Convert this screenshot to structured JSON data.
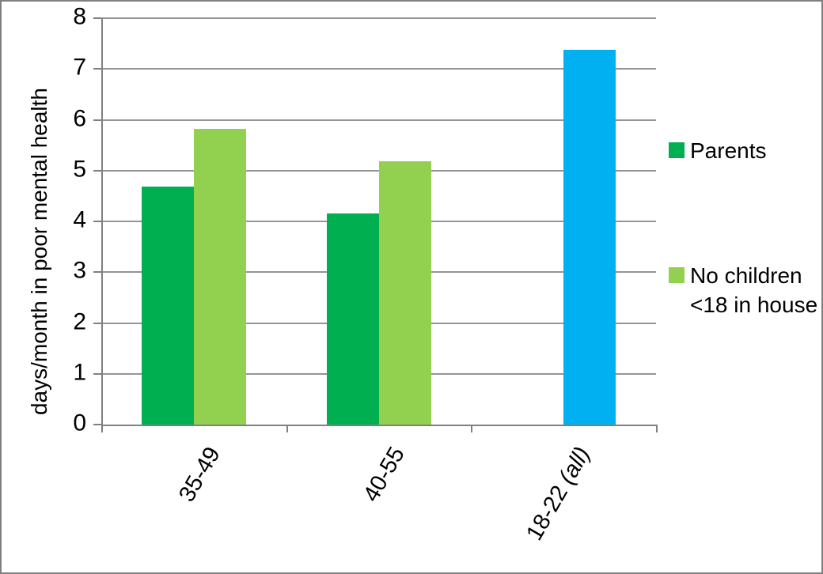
{
  "chart_data": {
    "type": "bar",
    "title": "",
    "xlabel": "",
    "ylabel": "days/month in poor mental health",
    "ylim": [
      0,
      8
    ],
    "y_ticks": [
      0,
      1,
      2,
      3,
      4,
      5,
      6,
      7,
      8
    ],
    "grid": true,
    "legend_position": "right",
    "categories": [
      "35-49",
      "40-55",
      "18-22 (all)"
    ],
    "category_labels": [
      {
        "text": "35-49",
        "italic_suffix": ""
      },
      {
        "text": "40-55",
        "italic_suffix": ""
      },
      {
        "text": "18-22",
        "italic_suffix": " (all)"
      }
    ],
    "series": [
      {
        "name": "Parents",
        "color": "#00B050",
        "values": [
          4.68,
          4.15,
          null
        ],
        "point_colors": [
          null,
          null,
          null
        ]
      },
      {
        "name": "No children <18 in house",
        "color": "#92D050",
        "values": [
          5.82,
          5.18,
          7.37
        ],
        "point_colors": [
          null,
          null,
          "#00B0F0"
        ]
      }
    ]
  },
  "legend": {
    "items": [
      {
        "label": "Parents",
        "color": "#00B050"
      },
      {
        "label": "No children <18 in house",
        "color": "#92D050"
      }
    ]
  },
  "colors": {
    "gridline": "#959595",
    "axis": "#808080",
    "text": "#000000",
    "frame_border": "#808080",
    "blue_bar": "#00B0F0"
  }
}
